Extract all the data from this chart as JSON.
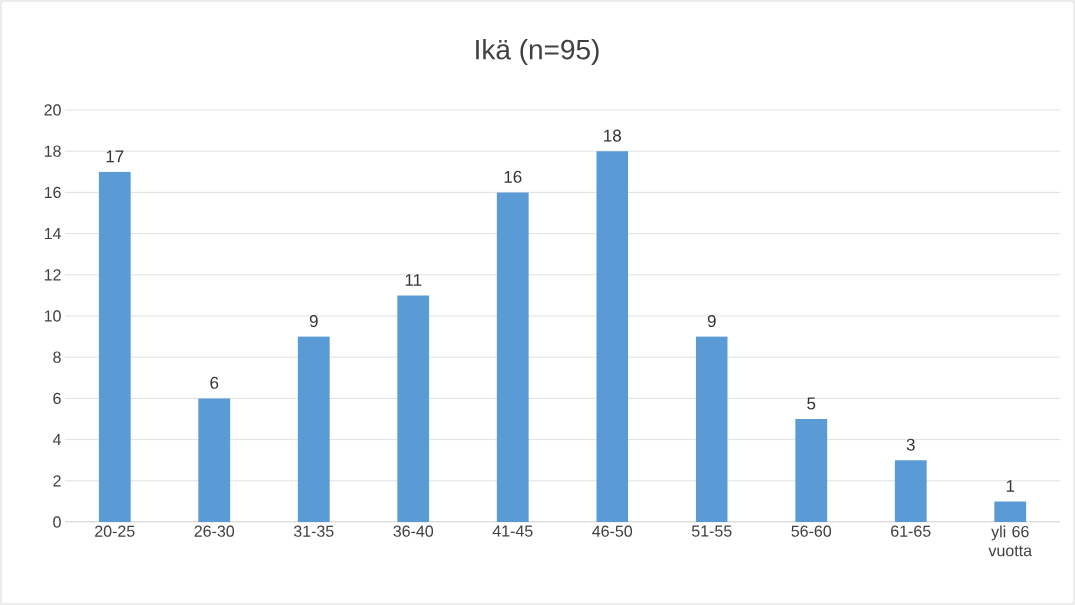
{
  "chart_data": {
    "type": "bar",
    "title": "Ikä (n=95)",
    "categories": [
      "20-25",
      "26-30",
      "31-35",
      "36-40",
      "41-45",
      "46-50",
      "51-55",
      "56-60",
      "61-65",
      "yli 66 vuotta"
    ],
    "values": [
      17,
      6,
      9,
      11,
      16,
      18,
      9,
      5,
      3,
      1
    ],
    "color": "#5b9bd5",
    "ylim": [
      0,
      20
    ],
    "yticks": [
      0,
      2,
      4,
      6,
      8,
      10,
      12,
      14,
      16,
      18,
      20
    ],
    "grid": "y",
    "data_labels": true
  }
}
